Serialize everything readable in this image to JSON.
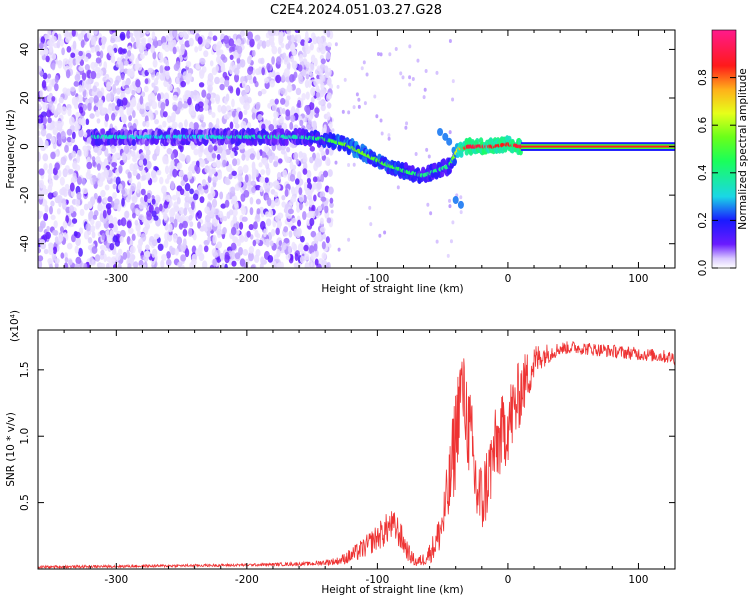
{
  "title": "C2E4.2024.051.03.27.G28",
  "colors": {
    "axis": "#000000",
    "snr_line": "#ee3333",
    "spectrum_low": "#6a1bff",
    "spectrum_mid": "#1fd7e6",
    "spectrum_high": "#ff1a1a"
  },
  "chart_data": [
    {
      "type": "heatmap",
      "panel": "top",
      "xlabel": "Height of straight line (km)",
      "ylabel": "Frequency (Hz)",
      "xlim": [
        -360,
        128
      ],
      "ylim": [
        -50,
        48
      ],
      "xticks": [
        -300,
        -200,
        -100,
        0,
        100
      ],
      "xtick_labels": [
        "-300",
        "-200",
        "-100",
        "0",
        "100"
      ],
      "yticks": [
        -40,
        -20,
        0,
        20,
        40
      ],
      "ytick_labels": [
        "-40",
        "-20",
        "0",
        "20",
        "40"
      ],
      "colorbar": {
        "label": "Normalized spectral amplitude",
        "range": [
          0,
          1
        ],
        "ticks": [
          0.0,
          0.2,
          0.4,
          0.6,
          0.8
        ],
        "tick_labels": [
          "0.0",
          "0.2",
          "0.4",
          "0.6",
          "0.8"
        ],
        "colormap": "rainbow (violet → blue → cyan → green → yellow → red → magenta)"
      },
      "trace": {
        "x": [
          -318,
          -280,
          -240,
          -200,
          -160,
          -140,
          -125,
          -110,
          -95,
          -80,
          -65,
          -55,
          -45,
          -38,
          -30,
          -20,
          -10,
          0,
          10,
          60,
          128
        ],
        "y": [
          4,
          4,
          4,
          4,
          4,
          3,
          1,
          -3,
          -7,
          -10,
          -12,
          -10,
          -8,
          -1,
          0,
          0,
          0,
          1,
          0,
          0,
          0
        ],
        "amplitude": [
          0.35,
          0.3,
          0.3,
          0.35,
          0.35,
          0.45,
          0.55,
          0.55,
          0.5,
          0.45,
          0.4,
          0.4,
          0.4,
          0.7,
          0.9,
          0.9,
          0.85,
          0.85,
          0.9,
          0.9,
          0.9
        ]
      },
      "noise_region_x": [
        -360,
        -135
      ]
    },
    {
      "type": "line",
      "panel": "bottom",
      "xlabel": "Height of straight line (km)",
      "ylabel": "SNR (10 * v/v)",
      "scale_label": "(x10⁴)",
      "xlim": [
        -360,
        128
      ],
      "ylim": [
        0,
        1.8
      ],
      "xticks": [
        -300,
        -200,
        -100,
        0,
        100
      ],
      "xtick_labels": [
        "-300",
        "-200",
        "-100",
        "0",
        "100"
      ],
      "yticks": [
        0.5,
        1.0,
        1.5
      ],
      "ytick_labels": [
        "0.5",
        "1.0",
        "1.5"
      ],
      "series": [
        {
          "x": [
            -360,
            -300,
            -250,
            -200,
            -150,
            -130,
            -120,
            -110,
            -100,
            -95,
            -90,
            -85,
            -80,
            -75,
            -70,
            -65,
            -60,
            -55,
            -50,
            -45,
            -40,
            -36,
            -32,
            -28,
            -24,
            -20,
            -15,
            -10,
            -5,
            0,
            5,
            10,
            15,
            20,
            25,
            30,
            35,
            40,
            50,
            60,
            70,
            80,
            90,
            100,
            110,
            120,
            128
          ],
          "y": [
            0.015,
            0.02,
            0.025,
            0.03,
            0.04,
            0.06,
            0.1,
            0.16,
            0.24,
            0.28,
            0.33,
            0.3,
            0.2,
            0.1,
            0.05,
            0.07,
            0.12,
            0.2,
            0.35,
            0.6,
            1.0,
            1.4,
            1.2,
            0.9,
            0.6,
            0.5,
            0.7,
            0.9,
            1.0,
            1.1,
            1.2,
            1.35,
            1.45,
            1.55,
            1.6,
            1.62,
            1.64,
            1.66,
            1.67,
            1.66,
            1.65,
            1.64,
            1.63,
            1.62,
            1.61,
            1.6,
            1.59
          ],
          "noise": [
            0.01,
            0.01,
            0.01,
            0.01,
            0.015,
            0.03,
            0.06,
            0.08,
            0.1,
            0.12,
            0.12,
            0.12,
            0.1,
            0.06,
            0.04,
            0.05,
            0.08,
            0.12,
            0.2,
            0.3,
            0.4,
            0.3,
            0.35,
            0.4,
            0.35,
            0.3,
            0.3,
            0.3,
            0.3,
            0.3,
            0.3,
            0.25,
            0.2,
            0.15,
            0.1,
            0.08,
            0.06,
            0.05,
            0.05,
            0.05,
            0.05,
            0.05,
            0.05,
            0.05,
            0.05,
            0.05,
            0.05
          ]
        }
      ]
    }
  ]
}
